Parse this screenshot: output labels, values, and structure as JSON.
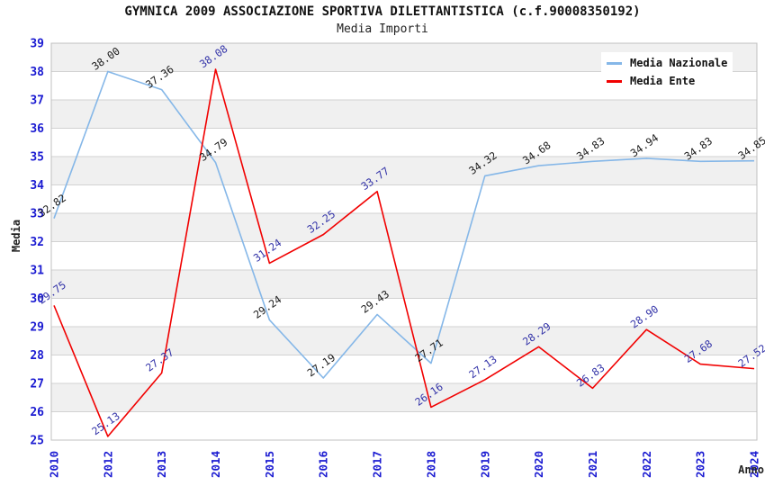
{
  "header": {
    "title": "GYMNICA 2009 ASSOCIAZIONE SPORTIVA DILETTANTISTICA (c.f.90008350192)",
    "subtitle": "Media Importi"
  },
  "chart_data": {
    "type": "line",
    "title": "GYMNICA 2009 ASSOCIAZIONE SPORTIVA DILETTANTISTICA (c.f.90008350192)",
    "subtitle": "Media Importi",
    "xlabel": "Anno",
    "ylabel": "Media",
    "ylim": [
      25,
      39
    ],
    "y_tick_step": 1,
    "grid": "horizontal-only",
    "band_fill": "alternating gray/white horizontal bands",
    "legend_position": "top-right-inside",
    "categories": [
      "2010",
      "2012",
      "2013",
      "2014",
      "2015",
      "2016",
      "2017",
      "2018",
      "2019",
      "2020",
      "2021",
      "2022",
      "2023",
      "2024"
    ],
    "series": [
      {
        "name": "Media Nazionale",
        "color": "#85b7e8",
        "label_color": "#1a1a1a",
        "values": [
          32.82,
          38.0,
          37.36,
          34.79,
          29.24,
          27.19,
          29.43,
          27.71,
          34.32,
          34.68,
          34.83,
          34.94,
          34.83,
          34.85
        ]
      },
      {
        "name": "Media Ente",
        "color": "#f10000",
        "label_color": "#3333a8",
        "values": [
          29.75,
          25.13,
          27.37,
          38.08,
          31.24,
          32.25,
          33.77,
          26.16,
          27.13,
          28.29,
          26.83,
          28.9,
          27.68,
          27.52
        ]
      }
    ],
    "style": {
      "tick_label_color": "#1a1ad1",
      "band_color": "#f0f0f0",
      "grid_color": "#d2d2d2",
      "border_color": "#c0c0c0"
    }
  }
}
